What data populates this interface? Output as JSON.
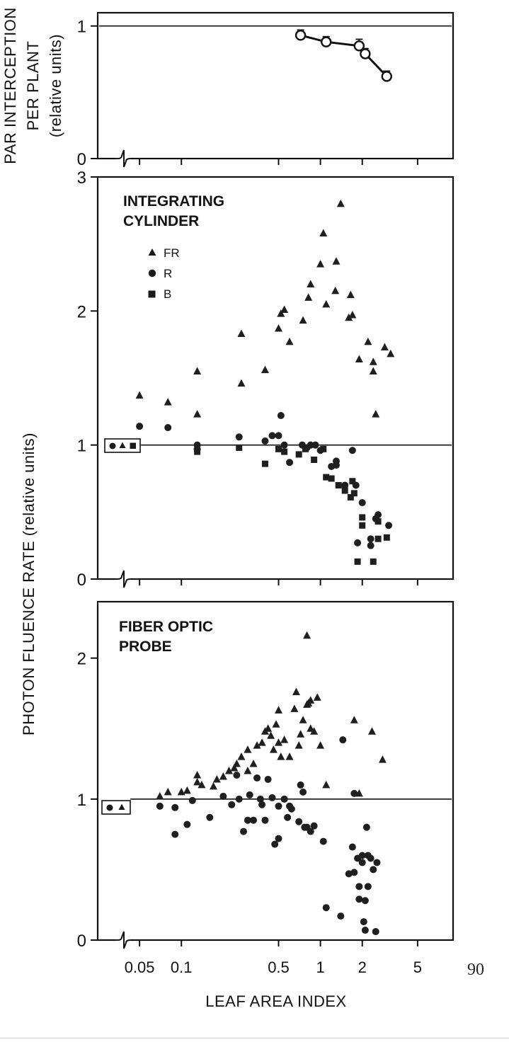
{
  "page_number": "90",
  "shared_x_axis": {
    "label": "LEAF AREA INDEX",
    "scale": "log",
    "tick_labels": [
      "0.05",
      "0.1",
      "0.5",
      "1",
      "2",
      "5"
    ],
    "tick_values": [
      0.05,
      0.1,
      0.5,
      1,
      2,
      5
    ],
    "xlim": [
      0.025,
      9
    ]
  },
  "chart_data": [
    {
      "type": "line",
      "ylabel_lines": [
        "PAR INTERCEPTION",
        "PER PLANT",
        "(relative units)"
      ],
      "ylim": [
        0,
        1.1
      ],
      "yticks": [
        "0",
        "1"
      ],
      "ytick_values": [
        0,
        1
      ],
      "reference_line": 1.0,
      "axis_break": true,
      "series": [
        {
          "x": [
            0.72,
            1.1,
            1.9,
            2.1,
            3.0
          ],
          "y": [
            0.93,
            0.88,
            0.85,
            0.79,
            0.62
          ],
          "error": [
            0.04,
            0.04,
            0.05,
            0.04,
            0.04
          ]
        }
      ]
    },
    {
      "type": "scatter",
      "title_lines": [
        "INTEGRATING",
        "CYLINDER"
      ],
      "ylim": [
        0,
        3
      ],
      "yticks": [
        "0",
        "1",
        "2",
        "3"
      ],
      "ytick_values": [
        0,
        1,
        2,
        3
      ],
      "reference_line": 1.0,
      "axis_break": true,
      "legend": {
        "placement": "top-left",
        "entries": [
          "FR",
          "R",
          "B"
        ]
      },
      "series": [
        {
          "name": "FR",
          "marker": "triangle",
          "points": [
            [
              0.05,
              1.37
            ],
            [
              0.08,
              1.32
            ],
            [
              0.13,
              1.55
            ],
            [
              0.13,
              1.23
            ],
            [
              0.27,
              1.83
            ],
            [
              0.27,
              1.46
            ],
            [
              0.4,
              1.56
            ],
            [
              0.5,
              1.87
            ],
            [
              0.52,
              1.98
            ],
            [
              0.55,
              2.01
            ],
            [
              0.6,
              1.77
            ],
            [
              0.75,
              1.93
            ],
            [
              0.82,
              2.1
            ],
            [
              0.85,
              2.2
            ],
            [
              1.0,
              2.35
            ],
            [
              1.05,
              2.58
            ],
            [
              1.1,
              2.05
            ],
            [
              1.28,
              2.15
            ],
            [
              1.3,
              2.37
            ],
            [
              1.4,
              2.8
            ],
            [
              1.65,
              2.12
            ],
            [
              1.6,
              1.95
            ],
            [
              1.7,
              1.97
            ],
            [
              1.9,
              1.64
            ],
            [
              2.2,
              1.77
            ],
            [
              2.4,
              1.62
            ],
            [
              2.4,
              1.55
            ],
            [
              2.5,
              1.23
            ],
            [
              2.9,
              1.73
            ],
            [
              3.2,
              1.68
            ]
          ]
        },
        {
          "name": "R",
          "marker": "circle",
          "points": [
            [
              0.05,
              1.14
            ],
            [
              0.08,
              1.13
            ],
            [
              0.13,
              1.0
            ],
            [
              0.13,
              0.97
            ],
            [
              0.26,
              1.06
            ],
            [
              0.4,
              1.03
            ],
            [
              0.45,
              1.07
            ],
            [
              0.52,
              1.22
            ],
            [
              0.5,
              1.07
            ],
            [
              0.55,
              1.0
            ],
            [
              0.6,
              0.87
            ],
            [
              0.74,
              1.0
            ],
            [
              0.8,
              0.98
            ],
            [
              0.85,
              1.0
            ],
            [
              0.92,
              1.0
            ],
            [
              1.0,
              0.96
            ],
            [
              1.2,
              0.84
            ],
            [
              1.3,
              0.85
            ],
            [
              1.3,
              0.88
            ],
            [
              1.5,
              0.7
            ],
            [
              1.7,
              0.96
            ],
            [
              1.8,
              0.7
            ],
            [
              1.85,
              0.27
            ],
            [
              2.0,
              0.57
            ],
            [
              2.3,
              0.3
            ],
            [
              2.3,
              0.25
            ],
            [
              2.5,
              0.45
            ],
            [
              2.6,
              0.48
            ],
            [
              3.1,
              0.4
            ]
          ]
        },
        {
          "name": "B",
          "marker": "square",
          "points": [
            [
              0.13,
              0.95
            ],
            [
              0.26,
              0.98
            ],
            [
              0.4,
              0.86
            ],
            [
              0.5,
              0.97
            ],
            [
              0.55,
              0.95
            ],
            [
              0.7,
              0.93
            ],
            [
              0.78,
              0.97
            ],
            [
              0.9,
              0.89
            ],
            [
              1.05,
              0.97
            ],
            [
              1.1,
              0.76
            ],
            [
              1.2,
              0.75
            ],
            [
              1.35,
              0.7
            ],
            [
              1.5,
              0.66
            ],
            [
              1.65,
              0.61
            ],
            [
              1.7,
              0.73
            ],
            [
              1.75,
              0.64
            ],
            [
              2.0,
              0.46
            ],
            [
              2.0,
              0.4
            ],
            [
              1.85,
              0.13
            ],
            [
              2.4,
              0.13
            ],
            [
              2.6,
              0.3
            ],
            [
              2.6,
              0.43
            ],
            [
              3.0,
              0.31
            ]
          ]
        }
      ]
    },
    {
      "type": "scatter",
      "title_lines": [
        "FIBER OPTIC",
        "PROBE"
      ],
      "ylim": [
        0,
        2.4
      ],
      "yticks": [
        "0",
        "1",
        "2"
      ],
      "ytick_values": [
        0,
        1,
        2
      ],
      "reference_line": 1.0,
      "axis_break": true,
      "legend": {
        "placement": "left",
        "entries": [
          "R",
          "FR"
        ]
      },
      "series": [
        {
          "name": "FR",
          "marker": "triangle",
          "points": [
            [
              0.07,
              1.02
            ],
            [
              0.08,
              1.05
            ],
            [
              0.1,
              1.05
            ],
            [
              0.11,
              1.06
            ],
            [
              0.13,
              1.12
            ],
            [
              0.13,
              1.17
            ],
            [
              0.14,
              1.1
            ],
            [
              0.17,
              1.09
            ],
            [
              0.18,
              1.14
            ],
            [
              0.2,
              1.16
            ],
            [
              0.22,
              1.2
            ],
            [
              0.24,
              1.22
            ],
            [
              0.25,
              1.25
            ],
            [
              0.27,
              1.3
            ],
            [
              0.3,
              1.35
            ],
            [
              0.3,
              1.2
            ],
            [
              0.33,
              1.25
            ],
            [
              0.35,
              1.38
            ],
            [
              0.38,
              1.4
            ],
            [
              0.4,
              1.48
            ],
            [
              0.42,
              1.5
            ],
            [
              0.44,
              1.45
            ],
            [
              0.46,
              1.35
            ],
            [
              0.48,
              1.53
            ],
            [
              0.5,
              1.4
            ],
            [
              0.5,
              1.63
            ],
            [
              0.52,
              1.3
            ],
            [
              0.55,
              1.42
            ],
            [
              0.6,
              1.3
            ],
            [
              0.65,
              1.64
            ],
            [
              0.67,
              1.76
            ],
            [
              0.7,
              1.38
            ],
            [
              0.72,
              1.46
            ],
            [
              0.75,
              1.56
            ],
            [
              0.8,
              1.67
            ],
            [
              0.82,
              1.68
            ],
            [
              0.85,
              1.7
            ],
            [
              0.85,
              1.5
            ],
            [
              0.9,
              1.48
            ],
            [
              0.95,
              1.72
            ],
            [
              1.0,
              1.38
            ],
            [
              1.1,
              1.1
            ],
            [
              0.8,
              2.16
            ],
            [
              1.75,
              1.56
            ],
            [
              1.9,
              1.04
            ],
            [
              2.35,
              1.48
            ],
            [
              2.8,
              1.28
            ]
          ]
        },
        {
          "name": "R",
          "marker": "circle",
          "points": [
            [
              0.07,
              0.95
            ],
            [
              0.09,
              0.94
            ],
            [
              0.09,
              0.75
            ],
            [
              0.11,
              0.82
            ],
            [
              0.12,
              0.99
            ],
            [
              0.16,
              0.87
            ],
            [
              0.2,
              1.02
            ],
            [
              0.23,
              0.96
            ],
            [
              0.25,
              1.17
            ],
            [
              0.26,
              1.0
            ],
            [
              0.28,
              0.77
            ],
            [
              0.3,
              0.85
            ],
            [
              0.31,
              1.03
            ],
            [
              0.33,
              0.85
            ],
            [
              0.35,
              1.15
            ],
            [
              0.37,
              1.0
            ],
            [
              0.38,
              0.96
            ],
            [
              0.4,
              0.85
            ],
            [
              0.42,
              1.14
            ],
            [
              0.45,
              1.01
            ],
            [
              0.47,
              0.68
            ],
            [
              0.5,
              0.72
            ],
            [
              0.5,
              0.95
            ],
            [
              0.55,
              1.0
            ],
            [
              0.58,
              0.87
            ],
            [
              0.6,
              0.95
            ],
            [
              0.62,
              0.93
            ],
            [
              0.7,
              0.84
            ],
            [
              0.72,
              1.1
            ],
            [
              0.75,
              1.05
            ],
            [
              0.77,
              0.8
            ],
            [
              0.8,
              0.8
            ],
            [
              0.85,
              0.77
            ],
            [
              0.9,
              0.81
            ],
            [
              1.05,
              0.7
            ],
            [
              1.1,
              0.23
            ],
            [
              1.45,
              1.42
            ],
            [
              1.4,
              0.17
            ],
            [
              1.6,
              0.47
            ],
            [
              1.7,
              0.66
            ],
            [
              1.75,
              0.48
            ],
            [
              1.75,
              1.04
            ],
            [
              1.85,
              0.58
            ],
            [
              1.9,
              0.29
            ],
            [
              1.9,
              0.38
            ],
            [
              2.0,
              0.55
            ],
            [
              2.0,
              0.6
            ],
            [
              2.05,
              0.13
            ],
            [
              2.1,
              0.07
            ],
            [
              2.15,
              0.8
            ],
            [
              2.2,
              0.6
            ],
            [
              2.3,
              0.58
            ],
            [
              2.2,
              0.38
            ],
            [
              2.1,
              0.28
            ],
            [
              2.5,
              0.06
            ],
            [
              2.55,
              0.55
            ],
            [
              2.4,
              0.5
            ]
          ]
        }
      ]
    }
  ]
}
